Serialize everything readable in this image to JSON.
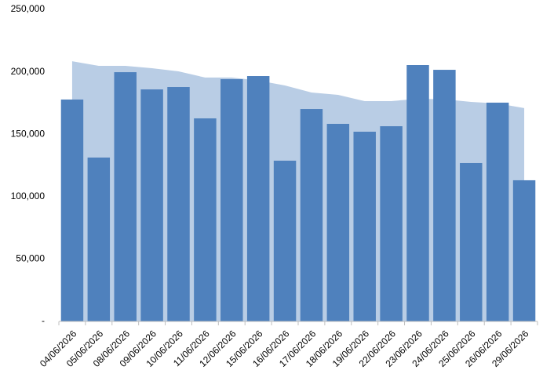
{
  "chart_data": {
    "type": "bar-area",
    "categories": [
      "04/06/2026",
      "05/06/2026",
      "08/06/2026",
      "09/06/2026",
      "10/06/2026",
      "11/06/2026",
      "12/06/2026",
      "15/06/2026",
      "16/06/2026",
      "17/06/2026",
      "18/06/2026",
      "19/06/2026",
      "22/06/2026",
      "23/06/2026",
      "24/06/2026",
      "25/06/2026",
      "26/06/2026",
      "29/06/2026"
    ],
    "series": [
      {
        "type": "area",
        "color": "#b9cde5",
        "values": [
          208500,
          204800,
          204800,
          202900,
          200400,
          195400,
          195400,
          193000,
          189100,
          183400,
          181500,
          176500,
          176500,
          178400,
          178000,
          175900,
          174600,
          170900
        ]
      },
      {
        "type": "bar",
        "color": "#4f81bd",
        "values": [
          177800,
          131300,
          199700,
          185900,
          187800,
          162700,
          194100,
          196600,
          128800,
          170200,
          158300,
          152000,
          156400,
          205400,
          201600,
          126900,
          175300,
          113100
        ]
      }
    ],
    "ylim": [
      0,
      250000
    ],
    "yticks": [
      {
        "value": 0,
        "label": "-"
      },
      {
        "value": 50000,
        "label": "50,000"
      },
      {
        "value": 100000,
        "label": "100,000"
      },
      {
        "value": 150000,
        "label": "150,000"
      },
      {
        "value": 200000,
        "label": "200,000"
      },
      {
        "value": 250000,
        "label": "250,000"
      }
    ]
  }
}
